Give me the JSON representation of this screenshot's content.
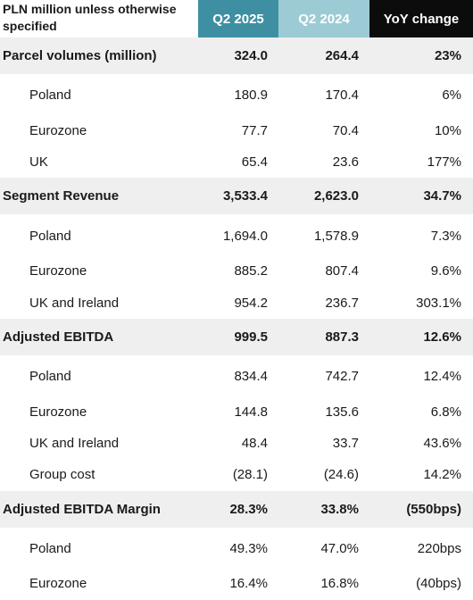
{
  "header": {
    "label": "PLN million unless otherwise specified",
    "col1": "Q2 2025",
    "col2": "Q2 2024",
    "col3": "YoY change"
  },
  "colors": {
    "q2_2025_header": "#3f8fa3",
    "q2_2024_header": "#9ccbd6",
    "yoy_header": "#0c0c0c",
    "group_row_bg": "#efefef"
  },
  "groups": [
    {
      "label": "Parcel volumes (million)",
      "v1": "324.0",
      "v2": "264.4",
      "v3": "23%",
      "rows": [
        {
          "label": "Poland",
          "v1": "180.9",
          "v2": "170.4",
          "v3": "6%"
        },
        {
          "label": "Eurozone",
          "v1": "77.7",
          "v2": "70.4",
          "v3": "10%"
        },
        {
          "label": "UK",
          "v1": "65.4",
          "v2": "23.6",
          "v3": "177%"
        }
      ]
    },
    {
      "label": "Segment Revenue",
      "v1": "3,533.4",
      "v2": "2,623.0",
      "v3": "34.7%",
      "rows": [
        {
          "label": "Poland",
          "v1": "1,694.0",
          "v2": "1,578.9",
          "v3": "7.3%"
        },
        {
          "label": "Eurozone",
          "v1": "885.2",
          "v2": "807.4",
          "v3": "9.6%"
        },
        {
          "label": "UK and Ireland",
          "v1": "954.2",
          "v2": "236.7",
          "v3": "303.1%"
        }
      ]
    },
    {
      "label": "Adjusted EBITDA",
      "v1": "999.5",
      "v2": "887.3",
      "v3": "12.6%",
      "rows": [
        {
          "label": "Poland",
          "v1": "834.4",
          "v2": "742.7",
          "v3": "12.4%"
        },
        {
          "label": "Eurozone",
          "v1": "144.8",
          "v2": "135.6",
          "v3": "6.8%"
        },
        {
          "label": "UK and Ireland",
          "v1": "48.4",
          "v2": "33.7",
          "v3": "43.6%"
        },
        {
          "label": "Group cost",
          "v1": "(28.1)",
          "v2": "(24.6)",
          "v3": "14.2%"
        }
      ]
    },
    {
      "label": "Adjusted EBITDA Margin",
      "v1": "28.3%",
      "v2": "33.8%",
      "v3": "(550bps)",
      "rows": [
        {
          "label": "Poland",
          "v1": "49.3%",
          "v2": "47.0%",
          "v3": "220bps"
        },
        {
          "label": "Eurozone",
          "v1": "16.4%",
          "v2": "16.8%",
          "v3": "(40bps)"
        }
      ]
    }
  ]
}
